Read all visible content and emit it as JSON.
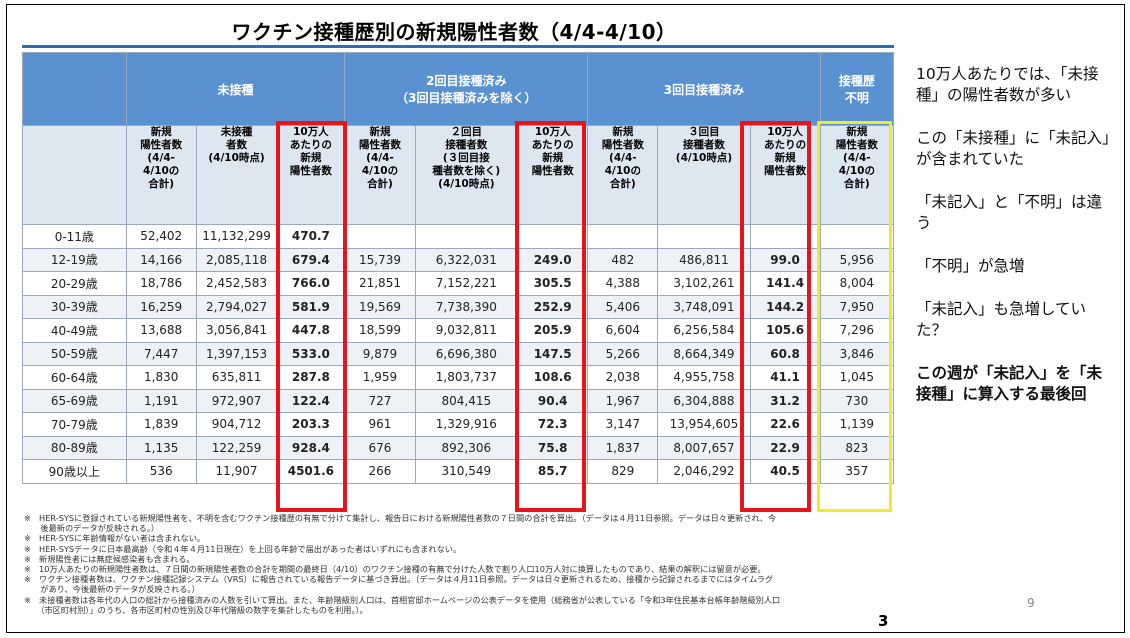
{
  "slide": {
    "title": "ワクチン接種歴別の新規陽性者数（4/4-4/10）",
    "page_number": "3"
  },
  "table": {
    "groups": {
      "unvaccinated": "未接種",
      "two_doses": [
        "2回目接種済み",
        "（3回目接種済みを除く）"
      ],
      "three_doses": "3回目接種済み",
      "unknown": [
        "接種歴",
        "不明"
      ]
    },
    "subheaders": {
      "new_cases": [
        "新規",
        "陽性者数",
        "(4/4-",
        "4/10の",
        "合計)"
      ],
      "unvax_population": [
        "未接種",
        "者数",
        "(4/10時点)"
      ],
      "per_100k": [
        "10万人",
        "あたりの",
        "新規",
        "陽性者数"
      ],
      "dose2_population": [
        "２回目",
        "接種者数",
        "(３回目接",
        "種者数を除く)",
        "(4/10時点)"
      ],
      "dose3_population": [
        "３回目",
        "接種者数",
        "(4/10時点)"
      ]
    },
    "rows": [
      {
        "age": "0-11歳",
        "unvax_cases": "52,402",
        "unvax_pop": "11,132,299",
        "unvax_rate": "470.7",
        "d2_cases": "",
        "d2_pop": "",
        "d2_rate": "",
        "d3_cases": "",
        "d3_pop": "",
        "d3_rate": "",
        "unknown": "",
        "na": true
      },
      {
        "age": "12-19歳",
        "unvax_cases": "14,166",
        "unvax_pop": "2,085,118",
        "unvax_rate": "679.4",
        "d2_cases": "15,739",
        "d2_pop": "6,322,031",
        "d2_rate": "249.0",
        "d3_cases": "482",
        "d3_pop": "486,811",
        "d3_rate": "99.0",
        "unknown": "5,956"
      },
      {
        "age": "20-29歳",
        "unvax_cases": "18,786",
        "unvax_pop": "2,452,583",
        "unvax_rate": "766.0",
        "d2_cases": "21,851",
        "d2_pop": "7,152,221",
        "d2_rate": "305.5",
        "d3_cases": "4,388",
        "d3_pop": "3,102,261",
        "d3_rate": "141.4",
        "unknown": "8,004"
      },
      {
        "age": "30-39歳",
        "unvax_cases": "16,259",
        "unvax_pop": "2,794,027",
        "unvax_rate": "581.9",
        "d2_cases": "19,569",
        "d2_pop": "7,738,390",
        "d2_rate": "252.9",
        "d3_cases": "5,406",
        "d3_pop": "3,748,091",
        "d3_rate": "144.2",
        "unknown": "7,950"
      },
      {
        "age": "40-49歳",
        "unvax_cases": "13,688",
        "unvax_pop": "3,056,841",
        "unvax_rate": "447.8",
        "d2_cases": "18,599",
        "d2_pop": "9,032,811",
        "d2_rate": "205.9",
        "d3_cases": "6,604",
        "d3_pop": "6,256,584",
        "d3_rate": "105.6",
        "unknown": "7,296"
      },
      {
        "age": "50-59歳",
        "unvax_cases": "7,447",
        "unvax_pop": "1,397,153",
        "unvax_rate": "533.0",
        "d2_cases": "9,879",
        "d2_pop": "6,696,380",
        "d2_rate": "147.5",
        "d3_cases": "5,266",
        "d3_pop": "8,664,349",
        "d3_rate": "60.8",
        "unknown": "3,846"
      },
      {
        "age": "60-64歳",
        "unvax_cases": "1,830",
        "unvax_pop": "635,811",
        "unvax_rate": "287.8",
        "d2_cases": "1,959",
        "d2_pop": "1,803,737",
        "d2_rate": "108.6",
        "d3_cases": "2,038",
        "d3_pop": "4,955,758",
        "d3_rate": "41.1",
        "unknown": "1,045"
      },
      {
        "age": "65-69歳",
        "unvax_cases": "1,191",
        "unvax_pop": "972,907",
        "unvax_rate": "122.4",
        "d2_cases": "727",
        "d2_pop": "804,415",
        "d2_rate": "90.4",
        "d3_cases": "1,967",
        "d3_pop": "6,304,888",
        "d3_rate": "31.2",
        "unknown": "730"
      },
      {
        "age": "70-79歳",
        "unvax_cases": "1,839",
        "unvax_pop": "904,712",
        "unvax_rate": "203.3",
        "d2_cases": "961",
        "d2_pop": "1,329,916",
        "d2_rate": "72.3",
        "d3_cases": "3,147",
        "d3_pop": "13,954,605",
        "d3_rate": "22.6",
        "unknown": "1,139"
      },
      {
        "age": "80-89歳",
        "unvax_cases": "1,135",
        "unvax_pop": "122,259",
        "unvax_rate": "928.4",
        "d2_cases": "676",
        "d2_pop": "892,306",
        "d2_rate": "75.8",
        "d3_cases": "1,837",
        "d3_pop": "8,007,657",
        "d3_rate": "22.9",
        "unknown": "823"
      },
      {
        "age": "90歳以上",
        "unvax_cases": "536",
        "unvax_pop": "11,907",
        "unvax_rate": "4501.6",
        "d2_cases": "266",
        "d2_pop": "310,549",
        "d2_rate": "85.7",
        "d3_cases": "829",
        "d3_pop": "2,046,292",
        "d3_rate": "40.5",
        "unknown": "357"
      }
    ]
  },
  "notes": [
    "※　HER-SYSに登録されている新規陽性者を、不明を含むワクチン接種歴の有無で分けて集計し、報告日における新規陽性者数の７日間の合計を算出。（データは４月11日参照。データは日々更新され、今",
    "　　後最新のデータが反映される。）",
    "※　HER-SYSに年齢情報がない者は含まれない。",
    "※　HER-SYSデータに日本最高齢（令和４年４月11日現在）を上回る年齢で届出があった者はいずれにも含まれない。",
    "※　新規陽性者には無症候感染者も含まれる。",
    "※　10万人あたりの新規陽性者数は、７日間の新規陽性者数の合計を期間の最終日（4/10）のワクチン接種の有無で分けた人数で割り人口10万人対に換算したものであり、結果の解釈には留意が必要。",
    "※　ワクチン接種者数は、ワクチン接種記録システム（VRS）に報告されている報告データに基づき算出。（データは４月11日参照。データは日々更新されるため、接種から記録されるまでにはタイムラグ",
    "　　があり、今後最新のデータが反映される。）",
    "※　未接種者数は各年代の人口の総計から接種済みの人数を引いて算出。また、年齢階級別人口は、首相官邸ホームページの公表データを使用（総務省が公表している「令和3年住民基本台帳年齢階級別人口",
    "　　（市区町村別）」のうち、各市区町村の性別及び年代階級の数字を集計したものを利用。）。"
  ],
  "sidebar": {
    "c1": "10万人あたりでは、「未接種」の陽性者数が多い",
    "c2": "この「未接種」に「未記入」が含まれていた",
    "c3": "「未記入」と「不明」は違う",
    "c4": "「不明」が急増",
    "c5": "「未記入」も急増していた？",
    "c6": "この週が「未記入」を「未接種」に算入する最後回"
  },
  "page_number": "9",
  "colors": {
    "header_blue": "#5a91d0",
    "sub_header": "#dde7f2",
    "highlight_red": "#e8141b",
    "highlight_yellow": "#f3ea2a"
  }
}
